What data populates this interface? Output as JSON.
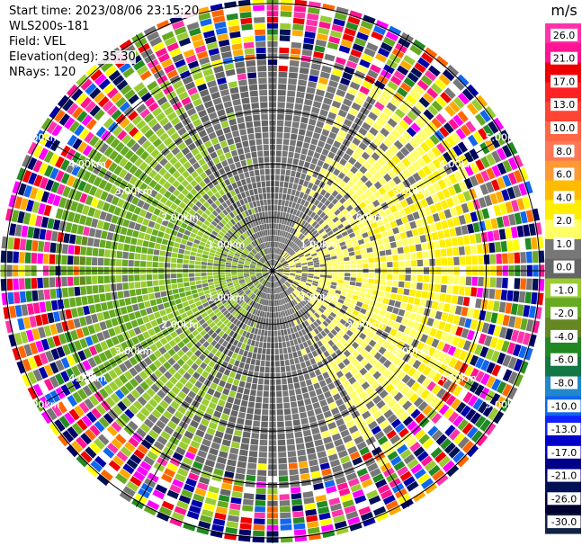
{
  "header": {
    "start_time": "Start time: 2023/08/06 23:15:20",
    "instrument": "WLS200s-181",
    "field": "Field: VEL",
    "elevation": "Elevation(deg): 35.30",
    "nrays": "NRays: 120"
  },
  "colorbar": {
    "unit": "m/s",
    "ticks": [
      "26.0",
      "21.0",
      "17.0",
      "13.0",
      "10.0",
      "8.0",
      "6.0",
      "4.0",
      "2.0",
      "1.0",
      "0.0",
      "-1.0",
      "-2.0",
      "-4.0",
      "-6.0",
      "-8.0",
      "-10.0",
      "-13.0",
      "-17.0",
      "-21.0",
      "-26.0",
      "-30.0"
    ],
    "colors": [
      "#ff33aa",
      "#ff1493",
      "#ee0000",
      "#ff2222",
      "#ff4433",
      "#ff6644",
      "#ff7755",
      "#ff9933",
      "#ffbb00",
      "#ffee00",
      "#ffff66",
      "#777777",
      "#666666",
      "#99cc33",
      "#66aa22",
      "#668822",
      "#228822",
      "#117744",
      "#2288cc",
      "#1166ee",
      "#1122ff",
      "#0000cc",
      "#000088",
      "#001155",
      "#000033",
      "#112244"
    ]
  },
  "chart_data": {
    "type": "ppi",
    "field": "VEL",
    "units": "m/s",
    "nrays": 120,
    "elevation_deg": 35.3,
    "range_rings_km": [
      1.0,
      2.0,
      3.0,
      4.0,
      5.0
    ],
    "range_labels": [
      "1.00km",
      "2.00km",
      "3.00km",
      "4.00km",
      "5.00km"
    ],
    "radial_lines": 6,
    "color_range": [
      -30.0,
      26.0
    ]
  }
}
